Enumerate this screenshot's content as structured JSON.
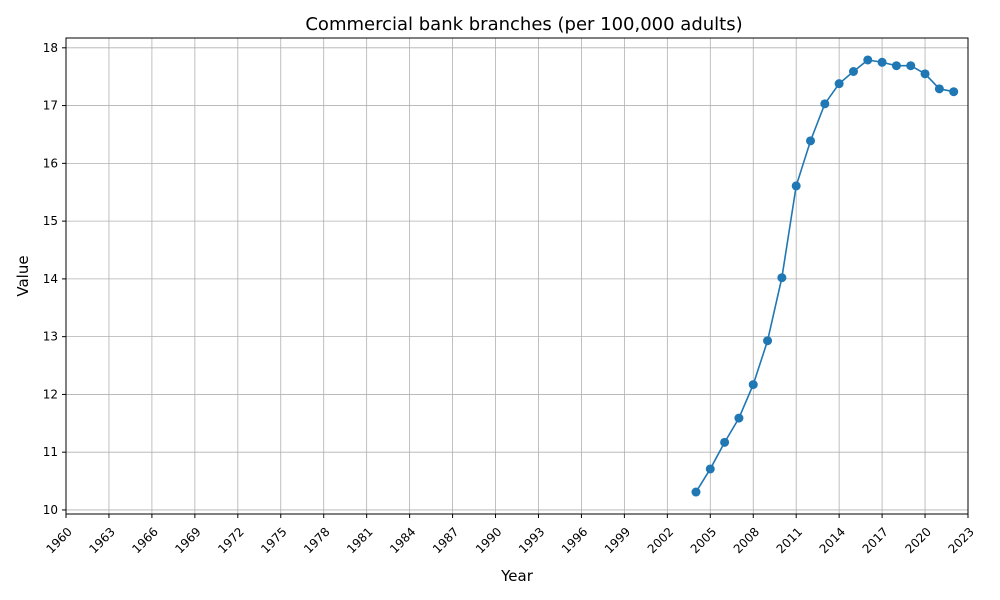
{
  "chart_data": {
    "type": "line",
    "title": "Commercial bank branches (per 100,000 adults)",
    "xlabel": "Year",
    "ylabel": "Value",
    "xlim": [
      1960,
      2023
    ],
    "ylim": [
      9.93,
      18.17
    ],
    "grid": true,
    "x_ticks": [
      1960,
      1963,
      1966,
      1969,
      1972,
      1975,
      1978,
      1981,
      1984,
      1987,
      1990,
      1993,
      1996,
      1999,
      2002,
      2005,
      2008,
      2011,
      2014,
      2017,
      2020,
      2023
    ],
    "y_ticks": [
      10,
      11,
      12,
      13,
      14,
      15,
      16,
      17,
      18
    ],
    "color": "#1f77b4",
    "x": [
      2004,
      2005,
      2006,
      2007,
      2008,
      2009,
      2010,
      2011,
      2012,
      2013,
      2014,
      2015,
      2016,
      2017,
      2018,
      2019,
      2020,
      2021,
      2022
    ],
    "values": [
      10.31,
      10.71,
      11.17,
      11.59,
      12.17,
      12.93,
      14.02,
      15.61,
      16.39,
      17.03,
      17.38,
      17.59,
      17.79,
      17.75,
      17.69,
      17.69,
      17.55,
      17.29,
      17.24
    ]
  }
}
